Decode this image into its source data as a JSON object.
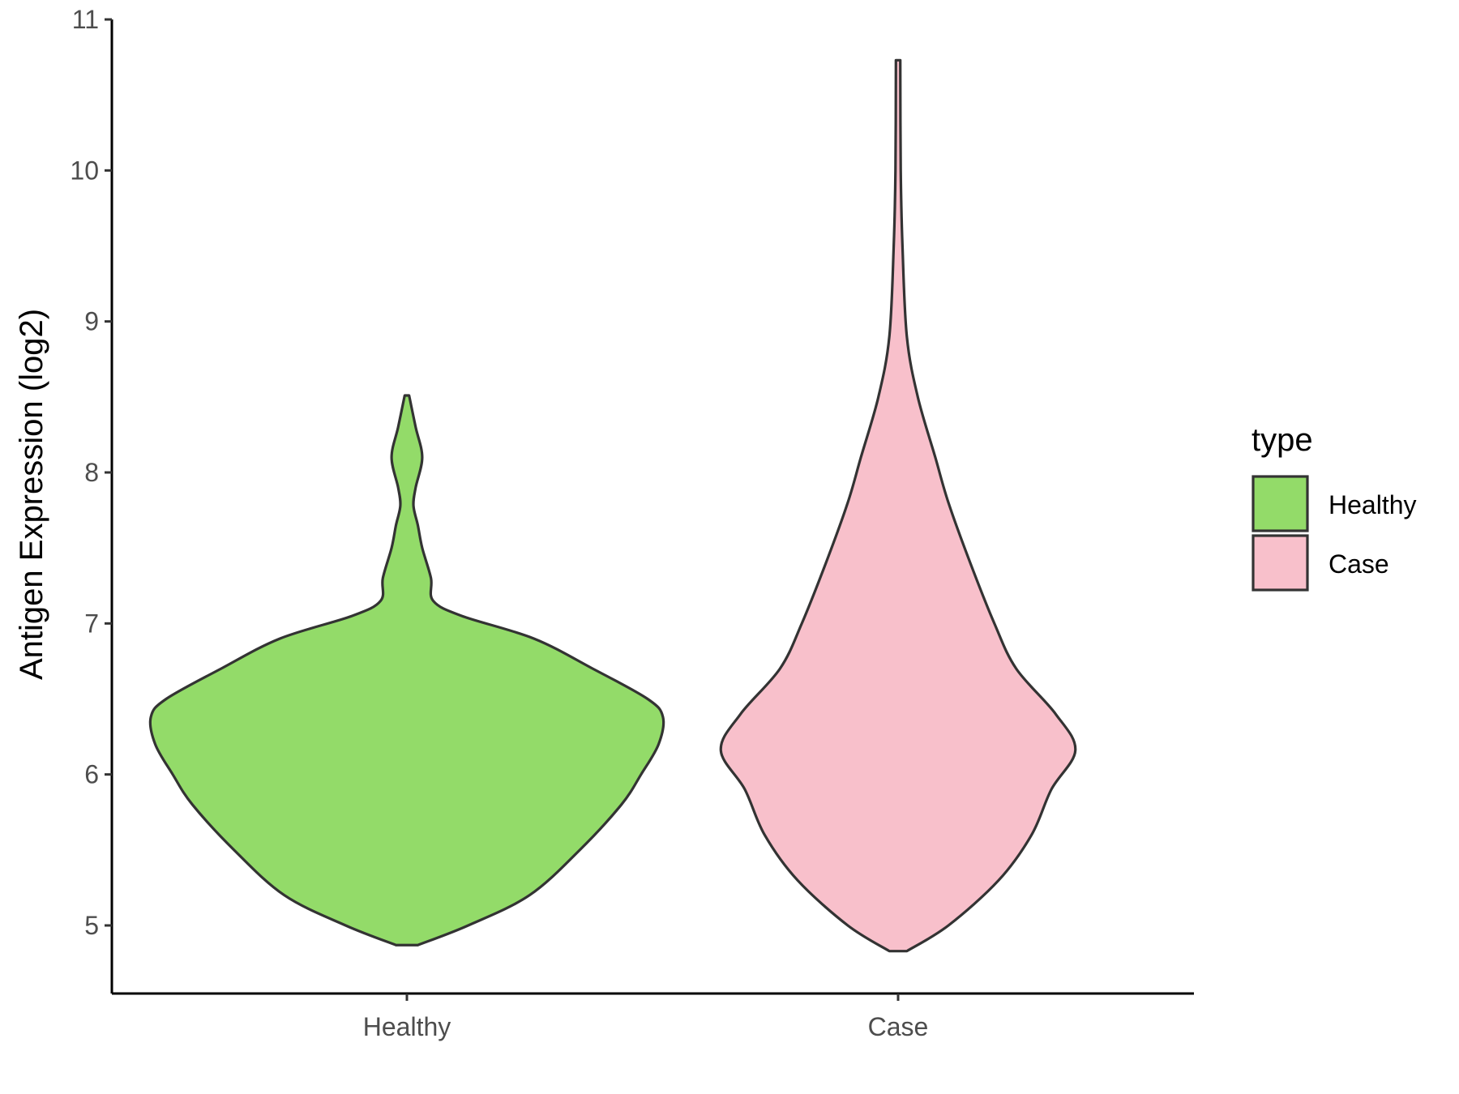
{
  "chart_data": {
    "type": "violin",
    "title": "",
    "xlabel": "",
    "ylabel": "Antigen Expression (log2)",
    "ylim": [
      4.55,
      11.0
    ],
    "y_ticks": [
      "5",
      "6",
      "7",
      "8",
      "9",
      "10",
      "11"
    ],
    "categories": [
      "Healthy",
      "Case"
    ],
    "grid": false,
    "legend": {
      "title": "type",
      "position": "right",
      "entries": [
        "Healthy",
        "Case"
      ]
    },
    "series": [
      {
        "name": "Healthy",
        "color": "#93db69",
        "range": [
          4.87,
          8.51
        ],
        "density_profile": [
          [
            4.87,
            0.05
          ],
          [
            5.0,
            0.28
          ],
          [
            5.2,
            0.56
          ],
          [
            5.5,
            0.79
          ],
          [
            5.8,
            0.98
          ],
          [
            6.0,
            1.07
          ],
          [
            6.2,
            1.15
          ],
          [
            6.38,
            1.17
          ],
          [
            6.5,
            1.1
          ],
          [
            6.7,
            0.85
          ],
          [
            6.9,
            0.58
          ],
          [
            7.05,
            0.25
          ],
          [
            7.15,
            0.12
          ],
          [
            7.3,
            0.11
          ],
          [
            7.5,
            0.07
          ],
          [
            7.65,
            0.05
          ],
          [
            7.78,
            0.03
          ],
          [
            7.9,
            0.04
          ],
          [
            8.1,
            0.07
          ],
          [
            8.3,
            0.04
          ],
          [
            8.51,
            0.01
          ]
        ]
      },
      {
        "name": "Case",
        "color": "#f8c0cb",
        "range": [
          4.83,
          10.73
        ],
        "density_profile": [
          [
            4.83,
            0.04
          ],
          [
            5.0,
            0.23
          ],
          [
            5.3,
            0.46
          ],
          [
            5.6,
            0.61
          ],
          [
            5.9,
            0.7
          ],
          [
            6.16,
            0.81
          ],
          [
            6.4,
            0.72
          ],
          [
            6.7,
            0.54
          ],
          [
            7.0,
            0.44
          ],
          [
            7.4,
            0.33
          ],
          [
            7.8,
            0.23
          ],
          [
            8.1,
            0.17
          ],
          [
            8.5,
            0.09
          ],
          [
            8.9,
            0.04
          ],
          [
            9.5,
            0.02
          ],
          [
            10.0,
            0.012
          ],
          [
            10.73,
            0.01
          ]
        ]
      }
    ]
  }
}
